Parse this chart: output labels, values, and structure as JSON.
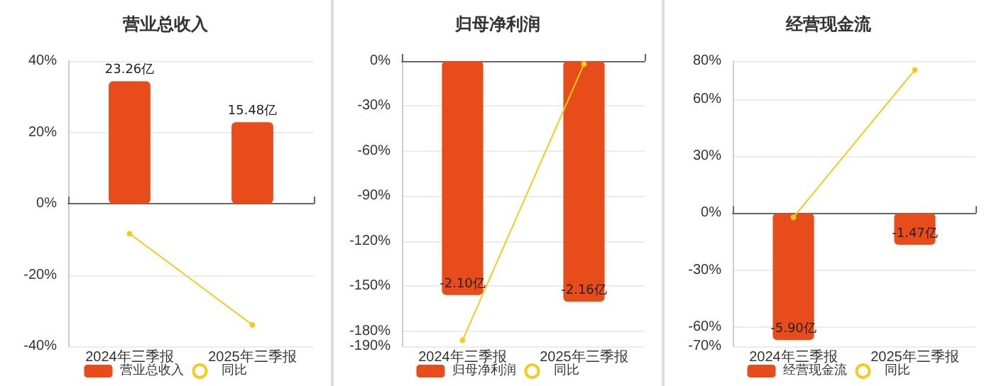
{
  "chart_data": [
    {
      "type": "bar",
      "title": "营业总收入",
      "categories": [
        "2024年三季报",
        "2025年三季报"
      ],
      "series": [
        {
          "name": "营业总收入",
          "axis": "y2",
          "color": "#e84c1b",
          "values": [
            23.26,
            15.48
          ],
          "value_labels": [
            "23.26亿",
            "15.48亿"
          ]
        },
        {
          "name": "同比",
          "type": "line",
          "color": "#f2cb1d",
          "values": [
            -8.4,
            -34
          ],
          "marker": "circle"
        }
      ],
      "ylim": [
        -40,
        40
      ],
      "yticks": [
        {
          "value": -40,
          "label": "-40%"
        },
        {
          "value": -20,
          "label": "-20%"
        },
        {
          "value": 0,
          "label": "0%"
        },
        {
          "value": 20,
          "label": "20%"
        },
        {
          "value": 40,
          "label": "40%"
        }
      ],
      "y2lim": [
        -27.1,
        27.1
      ],
      "grid": "y",
      "legend": "bottom"
    },
    {
      "type": "bar",
      "title": "归母净利润",
      "categories": [
        "2024年三季报",
        "2025年三季报"
      ],
      "series": [
        {
          "name": "归母净利润",
          "axis": "y2",
          "color": "#e84c1b",
          "values": [
            -2.1,
            -2.16
          ],
          "value_labels": [
            "-2.10亿",
            "-2.16亿"
          ]
        },
        {
          "name": "同比",
          "type": "line",
          "color": "#f2cb1d",
          "values": [
            -186,
            -2
          ],
          "marker": "circle"
        }
      ],
      "ylim": [
        -190,
        0
      ],
      "yticks": [
        {
          "value": -190,
          "label": "-190%"
        },
        {
          "value": -180,
          "label": "-180%"
        },
        {
          "value": -150,
          "label": "-150%"
        },
        {
          "value": -120,
          "label": "-120%"
        },
        {
          "value": -90,
          "label": "-90%"
        },
        {
          "value": -60,
          "label": "-60%"
        },
        {
          "value": -30,
          "label": "-30%"
        },
        {
          "value": 0,
          "label": "0%"
        }
      ],
      "y2lim": [
        -2.56,
        0
      ],
      "grid": "y",
      "legend": "bottom"
    },
    {
      "type": "bar",
      "title": "经营现金流",
      "categories": [
        "2024年三季报",
        "2025年三季报"
      ],
      "series": [
        {
          "name": "经营现金流",
          "axis": "y2",
          "color": "#e84c1b",
          "values": [
            -5.9,
            -1.47
          ],
          "value_labels": [
            "-5.90亿",
            "-1.47亿"
          ]
        },
        {
          "name": "同比",
          "type": "line",
          "color": "#f2cb1d",
          "values": [
            -2.2,
            75.3
          ],
          "marker": "circle"
        }
      ],
      "ylim": [
        -70,
        80
      ],
      "yticks": [
        {
          "value": -70,
          "label": "-70%"
        },
        {
          "value": -60,
          "label": "-60%"
        },
        {
          "value": -30,
          "label": "-30%"
        },
        {
          "value": 0,
          "label": "0%"
        },
        {
          "value": 30,
          "label": "30%"
        },
        {
          "value": 60,
          "label": "60%"
        },
        {
          "value": 80,
          "label": "80%"
        }
      ],
      "y2lim": [
        -6.19,
        7.08
      ],
      "grid": "y",
      "legend": "bottom"
    }
  ]
}
